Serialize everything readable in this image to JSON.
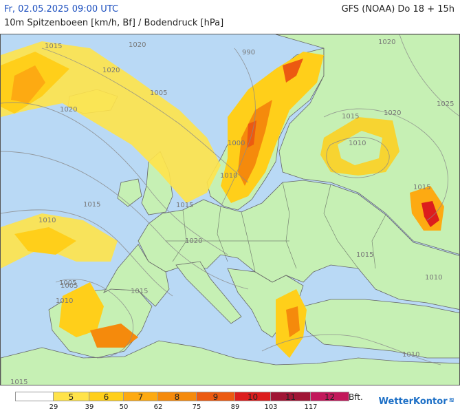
{
  "header": {
    "date": "Fr, 02.05.2025 09:00 UTC",
    "model": "GFS (NOAA) Do 18 + 15h",
    "subtitle": "10m Spitzenboeen [km/h, Bf] / Bodendruck [hPa]"
  },
  "isobar_labels": [
    "1015",
    "1020",
    "1005",
    "990",
    "1020",
    "1025",
    "1015",
    "1020",
    "1010",
    "1000",
    "1010",
    "1005",
    "1020",
    "1015",
    "1015",
    "1010",
    "1005",
    "1010",
    "1020",
    "1015",
    "1015",
    "1020",
    "1015",
    "1010",
    "1010",
    "1015"
  ],
  "legend": {
    "bft_labels": [
      "",
      "5",
      "6",
      "7",
      "8",
      "9",
      "10",
      "11",
      "12"
    ],
    "kmh_thresholds": [
      "29",
      "39",
      "50",
      "62",
      "75",
      "89",
      "103",
      "117"
    ],
    "unit": "Bft.",
    "colors": [
      "#ffffff",
      "#ffe34a",
      "#ffcf1a",
      "#fdaa12",
      "#f58a0c",
      "#ec5a11",
      "#dc1d1d",
      "#a01535",
      "#c2185b"
    ]
  },
  "brand": {
    "name": "WetterKontor",
    "icon": "wave-icon"
  },
  "map_colors": {
    "sea": "#b9d9f5",
    "land_calm": "#c6f0b4",
    "gust_bf5": "#ffe34a",
    "gust_bf6": "#ffcf1a",
    "gust_bf7": "#fdaa12",
    "gust_bf8": "#f58a0c",
    "gust_bf9": "#ec5a11",
    "gust_bf10": "#dc1d1d"
  }
}
